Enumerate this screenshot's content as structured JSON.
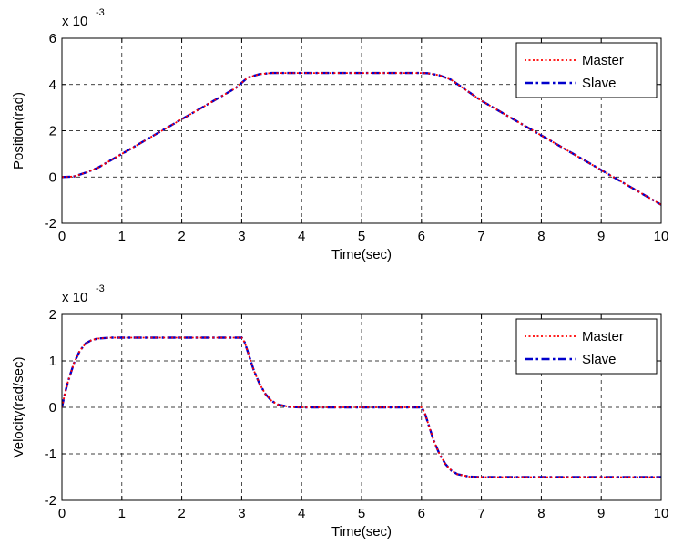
{
  "chart_data": [
    {
      "type": "line",
      "xlabel": "Time(sec)",
      "ylabel": "Position(rad)",
      "exponent_label": "x 10",
      "exponent": "-3",
      "xlim": [
        0,
        10
      ],
      "ylim": [
        -2,
        6
      ],
      "xticks": [
        "0",
        "1",
        "2",
        "3",
        "4",
        "5",
        "6",
        "7",
        "8",
        "9",
        "10"
      ],
      "xtick_values": [
        0,
        1,
        2,
        3,
        4,
        5,
        6,
        7,
        8,
        9,
        10
      ],
      "yticks": [
        "-2",
        "0",
        "2",
        "4",
        "6"
      ],
      "ytick_values": [
        -2,
        0,
        2,
        4,
        6
      ],
      "grid": true,
      "legend_position": "top-right",
      "series": [
        {
          "name": "Master",
          "color": "#ff0000",
          "style": "dotted",
          "x": [
            0,
            0.2,
            0.4,
            0.6,
            1,
            1.5,
            2,
            2.5,
            2.9,
            3.1,
            3.3,
            3.5,
            4,
            5,
            6,
            6.1,
            6.3,
            6.5,
            7,
            8,
            9,
            10
          ],
          "y": [
            0,
            0.02,
            0.19,
            0.4,
            1.0,
            1.75,
            2.5,
            3.25,
            3.85,
            4.3,
            4.45,
            4.5,
            4.5,
            4.5,
            4.5,
            4.49,
            4.4,
            4.2,
            3.3,
            1.8,
            0.3,
            -1.2
          ]
        },
        {
          "name": "Slave",
          "color": "#0000cc",
          "style": "dashdot",
          "x": [
            0,
            0.2,
            0.4,
            0.6,
            1,
            1.5,
            2,
            2.5,
            2.9,
            3.1,
            3.3,
            3.5,
            4,
            5,
            6,
            6.1,
            6.3,
            6.5,
            7,
            8,
            9,
            10
          ],
          "y": [
            0,
            0.02,
            0.19,
            0.4,
            1.0,
            1.75,
            2.5,
            3.25,
            3.85,
            4.3,
            4.45,
            4.5,
            4.5,
            4.5,
            4.5,
            4.49,
            4.4,
            4.2,
            3.3,
            1.8,
            0.3,
            -1.2
          ]
        }
      ]
    },
    {
      "type": "line",
      "xlabel": "Time(sec)",
      "ylabel": "Velocity(rad/sec)",
      "exponent_label": "x 10",
      "exponent": "-3",
      "xlim": [
        0,
        10
      ],
      "ylim": [
        -2,
        2
      ],
      "xticks": [
        "0",
        "1",
        "2",
        "3",
        "4",
        "5",
        "6",
        "7",
        "8",
        "9",
        "10"
      ],
      "xtick_values": [
        0,
        1,
        2,
        3,
        4,
        5,
        6,
        7,
        8,
        9,
        10
      ],
      "yticks": [
        "-2",
        "-1",
        "0",
        "1",
        "2"
      ],
      "ytick_values": [
        -2,
        -1,
        0,
        1,
        2
      ],
      "grid": true,
      "legend_position": "top-right",
      "series": [
        {
          "name": "Master",
          "color": "#ff0000",
          "style": "dotted",
          "x": [
            0,
            0.05,
            0.1,
            0.2,
            0.3,
            0.4,
            0.5,
            0.6,
            0.8,
            1,
            2,
            3,
            3.05,
            3.1,
            3.2,
            3.3,
            3.4,
            3.5,
            3.6,
            3.8,
            4,
            5,
            6,
            6.05,
            6.1,
            6.2,
            6.3,
            6.4,
            6.5,
            6.6,
            6.8,
            7,
            8,
            9,
            10
          ],
          "y": [
            0,
            0.3,
            0.55,
            0.95,
            1.22,
            1.38,
            1.45,
            1.48,
            1.5,
            1.5,
            1.5,
            1.5,
            1.4,
            1.2,
            0.8,
            0.5,
            0.28,
            0.14,
            0.06,
            0.01,
            0,
            0,
            0,
            -0.1,
            -0.3,
            -0.7,
            -1.0,
            -1.22,
            -1.36,
            -1.44,
            -1.49,
            -1.5,
            -1.5,
            -1.5,
            -1.5
          ]
        },
        {
          "name": "Slave",
          "color": "#0000cc",
          "style": "dashdot",
          "x": [
            0,
            0.05,
            0.1,
            0.2,
            0.3,
            0.4,
            0.5,
            0.6,
            0.8,
            1,
            2,
            3,
            3.05,
            3.1,
            3.2,
            3.3,
            3.4,
            3.5,
            3.6,
            3.8,
            4,
            5,
            6,
            6.05,
            6.1,
            6.2,
            6.3,
            6.4,
            6.5,
            6.6,
            6.8,
            7,
            8,
            9,
            10
          ],
          "y": [
            0,
            0.3,
            0.55,
            0.95,
            1.22,
            1.38,
            1.45,
            1.48,
            1.5,
            1.5,
            1.5,
            1.5,
            1.4,
            1.2,
            0.8,
            0.5,
            0.28,
            0.14,
            0.06,
            0.01,
            0,
            0,
            0,
            -0.1,
            -0.3,
            -0.7,
            -1.0,
            -1.22,
            -1.36,
            -1.44,
            -1.49,
            -1.5,
            -1.5,
            -1.5,
            -1.5
          ]
        }
      ]
    }
  ]
}
